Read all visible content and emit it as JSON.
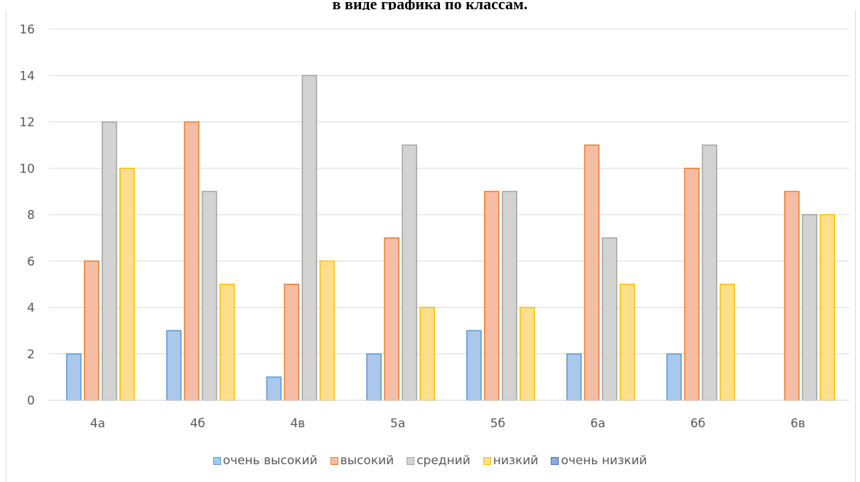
{
  "page": {
    "title": "в виде графика по классам."
  },
  "chart_data": {
    "type": "bar",
    "title": "",
    "xlabel": "",
    "ylabel": "",
    "ylim": [
      0,
      16
    ],
    "yticks": [
      0,
      2,
      4,
      6,
      8,
      10,
      12,
      14,
      16
    ],
    "grid": true,
    "legend_position": "bottom",
    "categories": [
      "4а",
      "4б",
      "4в",
      "5а",
      "5б",
      "6а",
      "6б",
      "6в"
    ],
    "series": [
      {
        "name": "очень высокий",
        "values": [
          2,
          3,
          1,
          2,
          3,
          2,
          2,
          0
        ],
        "fill": "#a9c8ec",
        "stroke": "#5b9bd5"
      },
      {
        "name": "высокий",
        "values": [
          6,
          12,
          5,
          7,
          9,
          11,
          10,
          9
        ],
        "fill": "#f7bda4",
        "stroke": "#ed7d31"
      },
      {
        "name": "средний",
        "values": [
          12,
          9,
          14,
          11,
          9,
          7,
          11,
          8
        ],
        "fill": "#d3d3d3",
        "stroke": "#a5a5a5"
      },
      {
        "name": "низкий",
        "values": [
          10,
          5,
          6,
          4,
          4,
          5,
          5,
          8
        ],
        "fill": "#ffdf8c",
        "stroke": "#ffc000"
      },
      {
        "name": "очень низкий",
        "values": [
          0,
          0,
          0,
          0,
          0,
          0,
          0,
          0
        ],
        "fill": "#8eaadb",
        "stroke": "#4472c4"
      }
    ]
  },
  "colors": {
    "gridline": "#d9d9d9",
    "axis_line": "#d9d9d9",
    "tick_text": "#595959"
  }
}
